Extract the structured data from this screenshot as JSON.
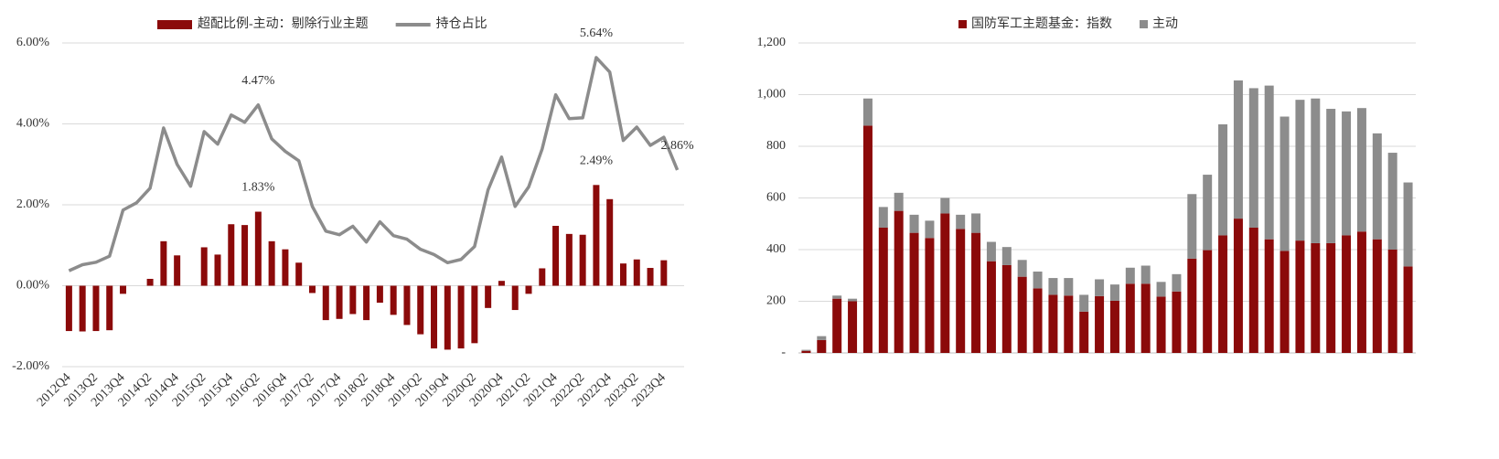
{
  "chart_data": [
    {
      "type": "combo",
      "categories": [
        "2012Q4",
        null,
        "2013Q2",
        null,
        "2013Q4",
        null,
        "2014Q2",
        null,
        "2014Q4",
        null,
        "2015Q2",
        null,
        "2015Q4",
        null,
        "2016Q2",
        null,
        "2016Q4",
        null,
        "2017Q2",
        null,
        "2017Q4",
        null,
        "2018Q2",
        null,
        "2018Q4",
        null,
        "2019Q2",
        null,
        "2019Q4",
        null,
        "2020Q2",
        null,
        "2020Q4",
        null,
        "2021Q2",
        null,
        "2021Q4",
        null,
        "2022Q2",
        null,
        "2022Q4",
        null,
        "2023Q2",
        null,
        "2023Q4",
        null
      ],
      "series": [
        {
          "name": "超配比例-主动：剔除行业主题",
          "type": "bar",
          "color": "#8b0a0a",
          "values": [
            -1.12,
            -1.13,
            -1.12,
            -1.1,
            -0.2,
            null,
            0.17,
            1.1,
            0.75,
            null,
            0.95,
            0.77,
            1.52,
            1.5,
            1.83,
            1.1,
            0.9,
            0.57,
            -0.18,
            -0.85,
            -0.82,
            -0.7,
            -0.85,
            -0.42,
            -0.72,
            -0.97,
            -1.2,
            -1.55,
            -1.58,
            -1.55,
            -1.42,
            -0.55,
            0.12,
            -0.6,
            -0.2,
            0.43,
            1.48,
            1.28,
            1.26,
            2.49,
            2.14,
            0.55,
            0.65,
            0.44,
            0.63,
            null
          ],
          "value_labels": [
            null,
            null,
            null,
            null,
            null,
            null,
            null,
            null,
            null,
            null,
            null,
            null,
            null,
            null,
            "1.83%",
            null,
            null,
            null,
            null,
            null,
            null,
            null,
            null,
            null,
            null,
            null,
            null,
            null,
            null,
            null,
            null,
            null,
            null,
            null,
            null,
            null,
            null,
            null,
            null,
            "2.49%",
            null,
            null,
            null,
            null,
            null,
            null
          ]
        },
        {
          "name": "持仓占比",
          "type": "line",
          "color": "#8c8c8c",
          "values": [
            0.37,
            0.52,
            0.58,
            0.73,
            1.87,
            2.05,
            2.41,
            3.9,
            3.0,
            2.46,
            3.81,
            3.5,
            4.22,
            4.04,
            4.47,
            3.63,
            3.32,
            3.09,
            1.96,
            1.35,
            1.26,
            1.47,
            1.08,
            1.58,
            1.24,
            1.15,
            0.9,
            0.77,
            0.57,
            0.65,
            0.97,
            2.37,
            3.18,
            1.96,
            2.44,
            3.38,
            4.72,
            4.13,
            4.15,
            5.64,
            5.28,
            3.59,
            3.92,
            3.47,
            3.67,
            2.86
          ],
          "value_labels": [
            null,
            null,
            null,
            null,
            null,
            null,
            null,
            null,
            null,
            null,
            null,
            null,
            null,
            null,
            "4.47%",
            null,
            null,
            null,
            null,
            null,
            null,
            null,
            null,
            null,
            null,
            null,
            null,
            null,
            null,
            null,
            null,
            null,
            null,
            null,
            null,
            null,
            null,
            null,
            null,
            "5.64%",
            null,
            null,
            null,
            null,
            null,
            "2.86%"
          ]
        }
      ],
      "ylim": [
        -2,
        6
      ],
      "yticks": [
        {
          "value": -2,
          "label": "-2.00%"
        },
        {
          "value": 0,
          "label": "0.00%"
        },
        {
          "value": 2,
          "label": "2.00%"
        },
        {
          "value": 4,
          "label": "4.00%"
        },
        {
          "value": 6,
          "label": "6.00%"
        }
      ],
      "grid": true,
      "legend": "top"
    },
    {
      "type": "stacked_bar",
      "categories": [
        null,
        null,
        null,
        null,
        null,
        null,
        null,
        null,
        null,
        null,
        null,
        null,
        null,
        null,
        null,
        null,
        null,
        null,
        null,
        null,
        null,
        null,
        null,
        null,
        null,
        null,
        null,
        null,
        null,
        null,
        null,
        null,
        null,
        null,
        null,
        null,
        null,
        null,
        null,
        null
      ],
      "series": [
        {
          "name": "国防军工主题基金：指数",
          "color": "#8b0a0a",
          "values": [
            8,
            50,
            210,
            200,
            880,
            485,
            550,
            465,
            445,
            540,
            480,
            465,
            355,
            340,
            295,
            250,
            225,
            222,
            160,
            220,
            202,
            268,
            268,
            218,
            238,
            365,
            398,
            455,
            520,
            485,
            440,
            395,
            435,
            425,
            425,
            455,
            470,
            440,
            400,
            335
          ]
        },
        {
          "name": "主动",
          "color": "#8c8c8c",
          "values": [
            4,
            15,
            12,
            10,
            105,
            80,
            70,
            70,
            67,
            60,
            55,
            75,
            75,
            70,
            65,
            65,
            65,
            68,
            65,
            65,
            63,
            62,
            70,
            57,
            67,
            250,
            292,
            430,
            535,
            540,
            595,
            520,
            545,
            560,
            520,
            480,
            478,
            410,
            375,
            325
          ]
        }
      ],
      "ylim": [
        0,
        1200
      ],
      "yticks": [
        {
          "value": 0,
          "label": "-"
        },
        200,
        400,
        600,
        800,
        {
          "value": 1000,
          "label": "1,000"
        },
        {
          "value": 1200,
          "label": "1,200"
        }
      ],
      "grid": true,
      "legend": "top"
    }
  ]
}
